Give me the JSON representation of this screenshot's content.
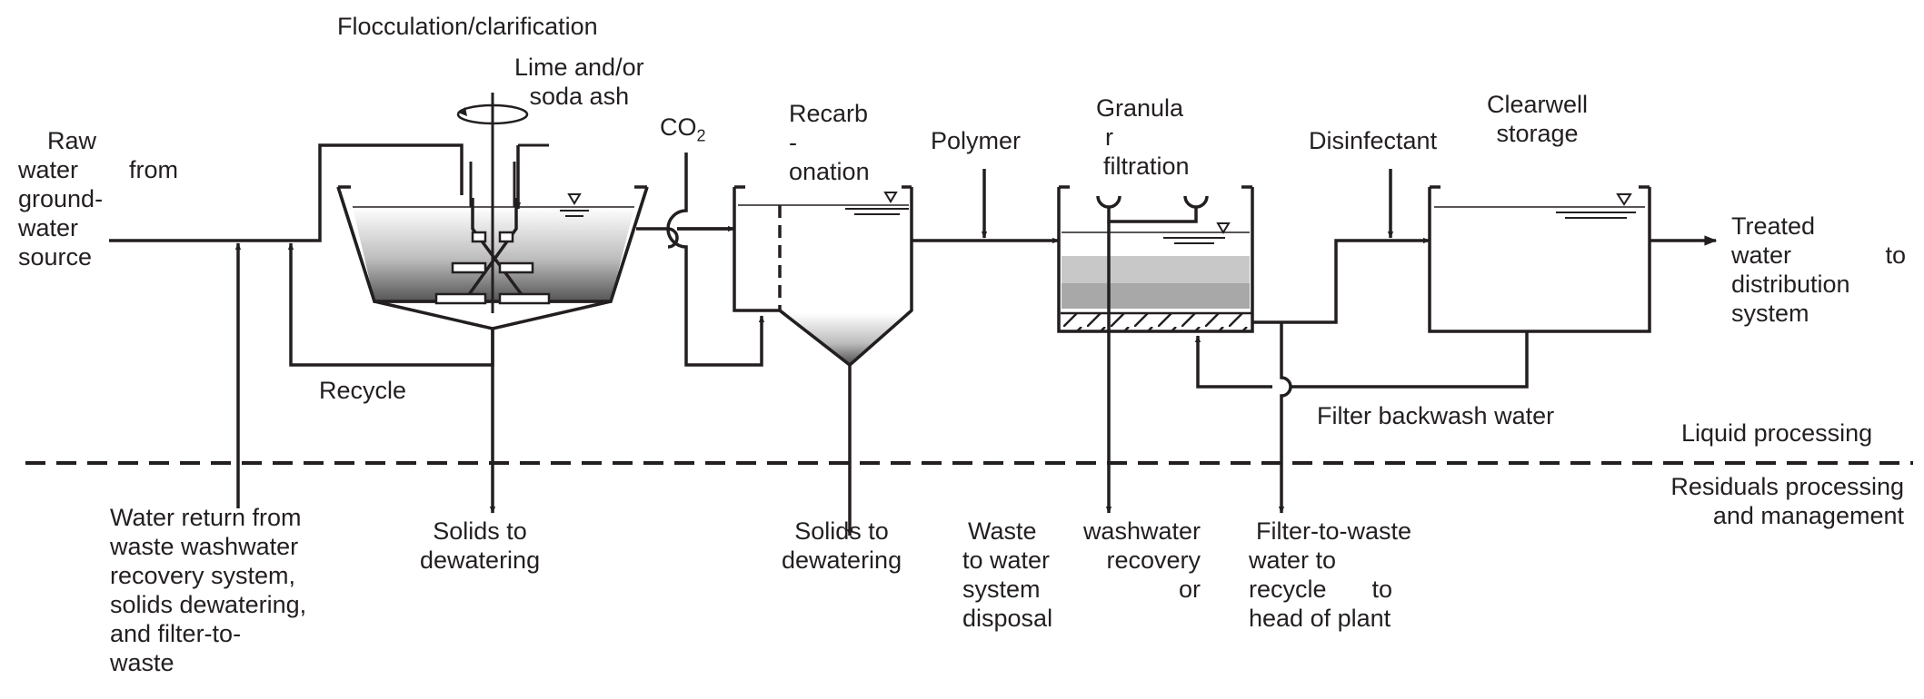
{
  "colors": {
    "line": "#231f20",
    "media_light": "#c8c8c8",
    "media_mid": "#a8a8a8",
    "sludge": "#555555"
  },
  "icons": [
    "mixer-rotation-icon",
    "water-level-icon",
    "flow-arrow-icon",
    "support-grid-icon"
  ],
  "labels": {
    "flocculation": "Flocculation/clarification",
    "lime_l1": "Lime and/or",
    "lime_l2": "soda ash",
    "raw_l1": "Raw",
    "raw_l2a": "water",
    "raw_l2b": "from",
    "raw_l3": "ground-",
    "raw_l4": "water",
    "raw_l5": "source",
    "co2_main": "CO",
    "co2_sub": "2",
    "recarb_l1": "Recarb",
    "recarb_l2": "-",
    "recarb_l3": "onation",
    "polymer": "Polymer",
    "granular_l1": "Granula",
    "granular_l2": "r",
    "granular_l3": "filtration",
    "disinfectant": "Disinfectant",
    "clearwell_l1": "Clearwell",
    "clearwell_l2": "storage",
    "treated_l1": "Treated",
    "treated_l2a": "water",
    "treated_l2b": "to",
    "treated_l3": "distribution",
    "treated_l4": "system",
    "recycle": "Recycle",
    "backwash": "Filter backwash water",
    "liquid": "Liquid processing",
    "residuals_l1": "Residuals processing",
    "residuals_l2": "and management",
    "water_return_l1": "Water return from",
    "water_return_l2": "waste washwater",
    "water_return_l3": "recovery system,",
    "water_return_l4": "solids dewatering,",
    "water_return_l5": "and filter-to-",
    "water_return_l6": "waste",
    "solids1_l1": "Solids to",
    "solids1_l2": "dewatering",
    "solids2_l1": "Solids to",
    "solids2_l2": "dewatering",
    "waste_l1a": "Waste",
    "waste_l1b": "washwater",
    "waste_l2a": "to water",
    "waste_l2b": "recovery",
    "waste_l3a": "system",
    "waste_l3b": "or",
    "waste_l4": "disposal",
    "ftw_l1": "Filter-to-waste",
    "ftw_l2": "water to",
    "ftw_l3a": "recycle",
    "ftw_l3b": "to",
    "ftw_l4": "head of plant"
  }
}
